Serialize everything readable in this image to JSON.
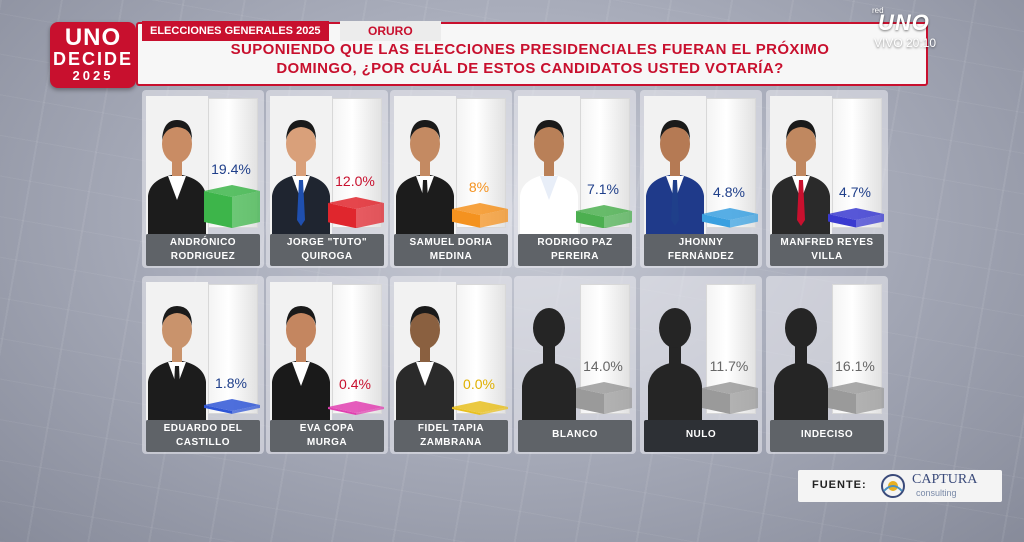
{
  "logo": {
    "line1": "UNO",
    "line2": "DECIDE",
    "line3": "2025"
  },
  "header": {
    "tag": "ELECCIONES GENERALES 2025",
    "location": "ORURO",
    "question_line1": "SUPONIENDO QUE LAS ELECCIONES PRESIDENCIALES FUERAN EL PRÓXIMO",
    "question_line2": "DOMINGO, ¿POR CUÁL DE ESTOS CANDIDATOS USTED VOTARÍA?"
  },
  "channel": {
    "network": "red",
    "brand": "UNO",
    "live_text": "VIVO 20:10"
  },
  "candidates": [
    {
      "name1": "ANDRÓNICO",
      "name2": "RODRIGUEZ",
      "percent": "19.4%",
      "value": 19.4,
      "color": "#3db54a",
      "pct_color": "#1f3f8a"
    },
    {
      "name1": "JORGE \"TUTO\"",
      "name2": "QUIROGA",
      "percent": "12.0%",
      "value": 12.0,
      "color": "#e0262d",
      "pct_color": "#c8102e"
    },
    {
      "name1": "SAMUEL DORIA",
      "name2": "MEDINA",
      "percent": "8%",
      "value": 8.0,
      "color": "#f4921f",
      "pct_color": "#f4921f"
    },
    {
      "name1": "RODRIGO PAZ",
      "name2": "PEREIRA",
      "percent": "7.1%",
      "value": 7.1,
      "color": "#4caf50",
      "pct_color": "#1f3f8a"
    },
    {
      "name1": "JHONNY",
      "name2": "FERNÁNDEZ",
      "percent": "4.8%",
      "value": 4.8,
      "color": "#3aa0e0",
      "pct_color": "#1f3f8a"
    },
    {
      "name1": "MANFRED REYES",
      "name2": "VILLA",
      "percent": "4.7%",
      "value": 4.7,
      "color": "#3a3ad0",
      "pct_color": "#1f3f8a"
    },
    {
      "name1": "EDUARDO DEL",
      "name2": "CASTILLO",
      "percent": "1.8%",
      "value": 1.8,
      "color": "#2f56d6",
      "pct_color": "#1f3f8a"
    },
    {
      "name1": "EVA COPA",
      "name2": "MURGA",
      "percent": "0.4%",
      "value": 0.4,
      "color": "#e040b0",
      "pct_color": "#c8102e"
    },
    {
      "name1": "FIDEL TAPIA",
      "name2": "ZAMBRANA",
      "percent": "0.0%",
      "value": 0.0,
      "color": "#e8c020",
      "pct_color": "#e0b000"
    },
    {
      "name1": "BLANCO",
      "name2": "",
      "percent": "14.0%",
      "value": 14.0,
      "color": "#9a9a9a",
      "pct_color": "#666666"
    },
    {
      "name1": "NULO",
      "name2": "",
      "percent": "11.7%",
      "value": 11.7,
      "color": "#9a9a9a",
      "pct_color": "#666666"
    },
    {
      "name1": "INDECISO",
      "name2": "",
      "percent": "16.1%",
      "value": 16.1,
      "color": "#9a9a9a",
      "pct_color": "#666666"
    }
  ],
  "source": {
    "label": "FUENTE:",
    "brand": "CAPTURA",
    "sub": "consulting"
  }
}
